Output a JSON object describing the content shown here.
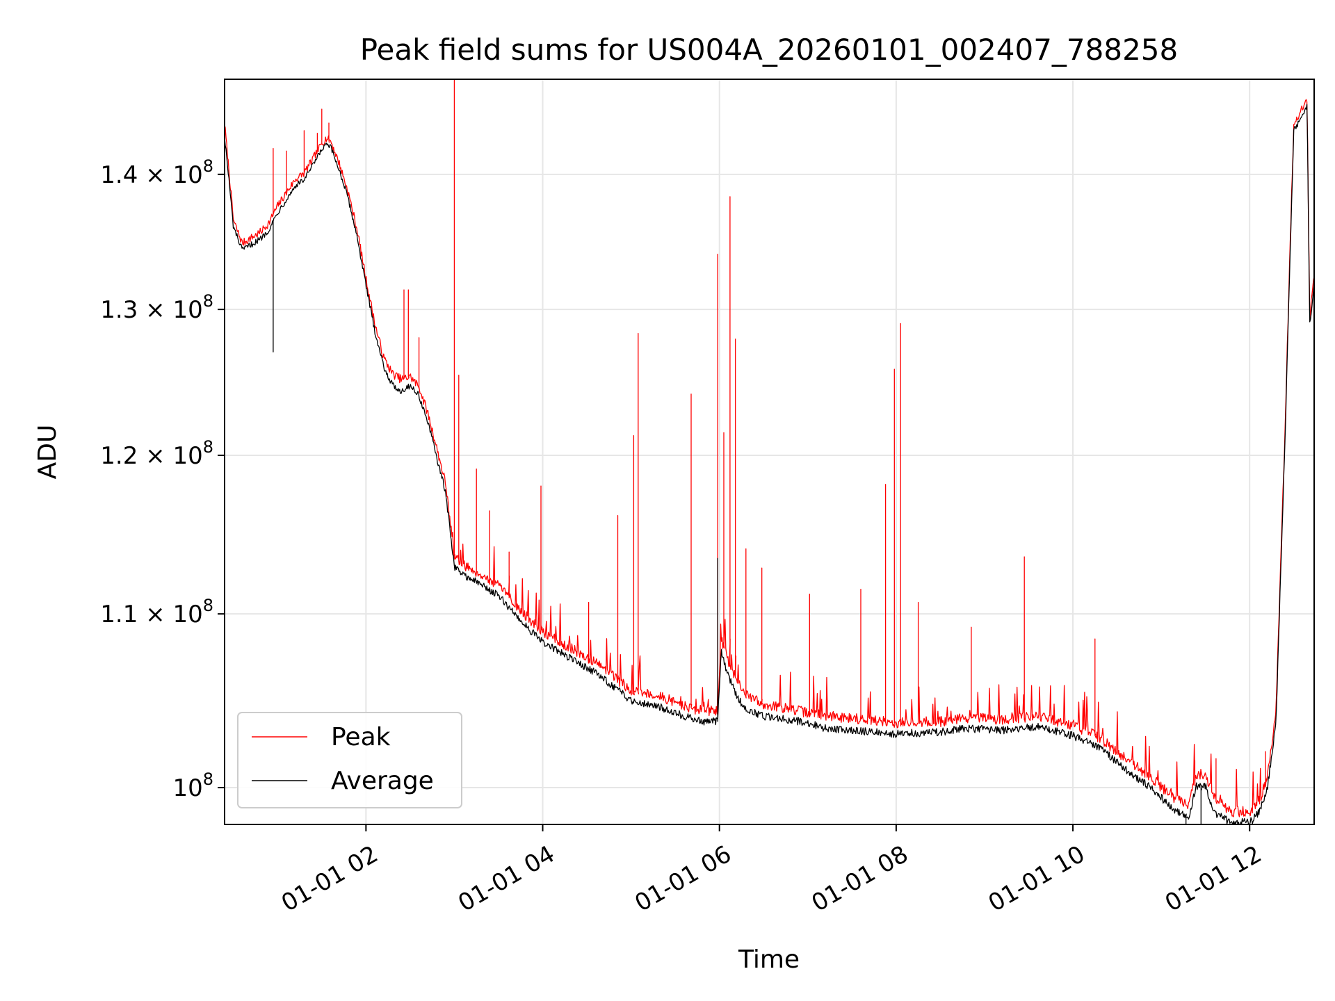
{
  "chart_data": {
    "type": "line",
    "title": "Peak field sums for US004A_20260101_002407_788258",
    "xlabel": "Time",
    "ylabel": "ADU",
    "x_unit": "hours since 2026-01-01 00:00",
    "xlim": [
      0.4,
      12.73
    ],
    "ylim": [
      98000000,
      147500000
    ],
    "y_scale": "log",
    "grid": true,
    "legend_location": "lower left",
    "x_ticks": [
      {
        "value": 2,
        "label": "01-01 02"
      },
      {
        "value": 4,
        "label": "01-01 04"
      },
      {
        "value": 6,
        "label": "01-01 06"
      },
      {
        "value": 8,
        "label": "01-01 08"
      },
      {
        "value": 10,
        "label": "01-01 10"
      },
      {
        "value": 12,
        "label": "01-01 12"
      }
    ],
    "y_ticks": [
      {
        "value": 100000000,
        "base": "10",
        "exponent": "8",
        "mantissa": ""
      },
      {
        "value": 110000000,
        "base": "1.1 × 10",
        "exponent": "8",
        "mantissa": "1.1"
      },
      {
        "value": 120000000,
        "base": "1.2 × 10",
        "exponent": "8",
        "mantissa": "1.2"
      },
      {
        "value": 130000000,
        "base": "1.3 × 10",
        "exponent": "8",
        "mantissa": "1.3"
      },
      {
        "value": 140000000,
        "base": "1.4 × 10",
        "exponent": "8",
        "mantissa": "1.4"
      }
    ],
    "series": [
      {
        "name": "Peak",
        "label": "Peak",
        "color": "#ff0000",
        "baseline_offset": 400000,
        "noise_amplitude": 300000,
        "spikes": [
          {
            "x": 0.95,
            "y": 142000000
          },
          {
            "x": 1.1,
            "y": 141800000
          },
          {
            "x": 1.3,
            "y": 143400000
          },
          {
            "x": 1.45,
            "y": 143200000
          },
          {
            "x": 1.5,
            "y": 145100000
          },
          {
            "x": 1.58,
            "y": 144000000
          },
          {
            "x": 2.43,
            "y": 131400000
          },
          {
            "x": 2.48,
            "y": 131400000
          },
          {
            "x": 2.6,
            "y": 128000000
          },
          {
            "x": 3.0,
            "y": 147500000
          },
          {
            "x": 3.05,
            "y": 125400000
          },
          {
            "x": 3.25,
            "y": 119100000
          },
          {
            "x": 3.4,
            "y": 116400000
          },
          {
            "x": 3.62,
            "y": 113800000
          },
          {
            "x": 3.98,
            "y": 118000000
          },
          {
            "x": 4.52,
            "y": 110700000
          },
          {
            "x": 4.85,
            "y": 116100000
          },
          {
            "x": 5.03,
            "y": 121300000
          },
          {
            "x": 5.08,
            "y": 128300000
          },
          {
            "x": 5.68,
            "y": 124100000
          },
          {
            "x": 5.98,
            "y": 134000000
          },
          {
            "x": 6.05,
            "y": 121500000
          },
          {
            "x": 6.12,
            "y": 138300000
          },
          {
            "x": 6.18,
            "y": 127900000
          },
          {
            "x": 6.3,
            "y": 114000000
          },
          {
            "x": 6.48,
            "y": 112800000
          },
          {
            "x": 7.02,
            "y": 111200000
          },
          {
            "x": 7.6,
            "y": 111500000
          },
          {
            "x": 7.88,
            "y": 118100000
          },
          {
            "x": 7.98,
            "y": 125800000
          },
          {
            "x": 8.05,
            "y": 129000000
          },
          {
            "x": 8.25,
            "y": 110700000
          },
          {
            "x": 8.85,
            "y": 109200000
          },
          {
            "x": 9.45,
            "y": 113500000
          },
          {
            "x": 10.25,
            "y": 108500000
          },
          {
            "x": 11.38,
            "y": 101500000
          },
          {
            "x": 11.62,
            "y": 101600000
          },
          {
            "x": 12.18,
            "y": 102000000
          }
        ],
        "points": [
          [
            0.4,
            144000000
          ],
          [
            0.5,
            136500000
          ],
          [
            0.6,
            134800000
          ],
          [
            0.7,
            135200000
          ],
          [
            0.8,
            135600000
          ],
          [
            0.9,
            136300000
          ],
          [
            1.0,
            137600000
          ],
          [
            1.1,
            138600000
          ],
          [
            1.2,
            139600000
          ],
          [
            1.3,
            140100000
          ],
          [
            1.4,
            141200000
          ],
          [
            1.5,
            142400000
          ],
          [
            1.55,
            142800000
          ],
          [
            1.6,
            142600000
          ],
          [
            1.7,
            140800000
          ],
          [
            1.8,
            138600000
          ],
          [
            1.9,
            135800000
          ],
          [
            2.0,
            132200000
          ],
          [
            2.1,
            129000000
          ],
          [
            2.2,
            126600000
          ],
          [
            2.3,
            125500000
          ],
          [
            2.4,
            125100000
          ],
          [
            2.5,
            125300000
          ],
          [
            2.6,
            124600000
          ],
          [
            2.7,
            122800000
          ],
          [
            2.8,
            120500000
          ],
          [
            2.9,
            118200000
          ],
          [
            3.0,
            113500000
          ],
          [
            3.1,
            113000000
          ],
          [
            3.3,
            112400000
          ],
          [
            3.5,
            111700000
          ],
          [
            3.7,
            110500000
          ],
          [
            3.9,
            109400000
          ],
          [
            4.0,
            108900000
          ],
          [
            4.2,
            108300000
          ],
          [
            4.4,
            107700000
          ],
          [
            4.6,
            107100000
          ],
          [
            4.8,
            106300000
          ],
          [
            5.0,
            105500000
          ],
          [
            5.2,
            105300000
          ],
          [
            5.4,
            105000000
          ],
          [
            5.6,
            104600000
          ],
          [
            5.8,
            104300000
          ],
          [
            5.98,
            104300000
          ],
          [
            6.02,
            108500000
          ],
          [
            6.1,
            107200000
          ],
          [
            6.2,
            106000000
          ],
          [
            6.3,
            105200000
          ],
          [
            6.5,
            104700000
          ],
          [
            6.8,
            104400000
          ],
          [
            7.0,
            104200000
          ],
          [
            7.2,
            104000000
          ],
          [
            7.5,
            103900000
          ],
          [
            8.0,
            103600000
          ],
          [
            8.5,
            103700000
          ],
          [
            8.8,
            103900000
          ],
          [
            9.2,
            103800000
          ],
          [
            9.6,
            104000000
          ],
          [
            10.0,
            103500000
          ],
          [
            10.3,
            102800000
          ],
          [
            10.6,
            101600000
          ],
          [
            10.9,
            100500000
          ],
          [
            11.1,
            99600000
          ],
          [
            11.3,
            99000000
          ],
          [
            11.4,
            100700000
          ],
          [
            11.5,
            100800000
          ],
          [
            11.6,
            99300000
          ],
          [
            11.8,
            98700000
          ],
          [
            12.0,
            98700000
          ],
          [
            12.1,
            99200000
          ],
          [
            12.2,
            100500000
          ],
          [
            12.3,
            104500000
          ],
          [
            12.4,
            121500000
          ],
          [
            12.5,
            144000000
          ],
          [
            12.6,
            145200000
          ],
          [
            12.65,
            145900000
          ],
          [
            12.68,
            129500000
          ],
          [
            12.73,
            132300000
          ]
        ]
      },
      {
        "name": "Average",
        "label": "Average",
        "color": "#000000",
        "baseline_offset": 0,
        "noise_amplitude": 220000,
        "spikes": [
          {
            "x": 0.95,
            "y": 127000000
          },
          {
            "x": 5.98,
            "y": 113400000
          },
          {
            "x": 11.28,
            "y": 97800000
          },
          {
            "x": 11.45,
            "y": 97600000
          }
        ],
        "points": [
          [
            0.4,
            143000000
          ],
          [
            0.5,
            136000000
          ],
          [
            0.6,
            134300000
          ],
          [
            0.7,
            134700000
          ],
          [
            0.8,
            135100000
          ],
          [
            0.9,
            135800000
          ],
          [
            1.0,
            137100000
          ],
          [
            1.1,
            138100000
          ],
          [
            1.2,
            139100000
          ],
          [
            1.3,
            139600000
          ],
          [
            1.4,
            140700000
          ],
          [
            1.5,
            141900000
          ],
          [
            1.55,
            142300000
          ],
          [
            1.6,
            142100000
          ],
          [
            1.7,
            140300000
          ],
          [
            1.8,
            138100000
          ],
          [
            1.9,
            135300000
          ],
          [
            2.0,
            131700000
          ],
          [
            2.1,
            128500000
          ],
          [
            2.2,
            126000000
          ],
          [
            2.3,
            124700000
          ],
          [
            2.4,
            124300000
          ],
          [
            2.5,
            124700000
          ],
          [
            2.6,
            124000000
          ],
          [
            2.7,
            122200000
          ],
          [
            2.8,
            119900000
          ],
          [
            2.9,
            117600000
          ],
          [
            3.0,
            112900000
          ],
          [
            3.1,
            112400000
          ],
          [
            3.3,
            111800000
          ],
          [
            3.5,
            111100000
          ],
          [
            3.7,
            109900000
          ],
          [
            3.9,
            108800000
          ],
          [
            4.0,
            108300000
          ],
          [
            4.2,
            107700000
          ],
          [
            4.4,
            107100000
          ],
          [
            4.6,
            106500000
          ],
          [
            4.8,
            105700000
          ],
          [
            5.0,
            104900000
          ],
          [
            5.2,
            104700000
          ],
          [
            5.4,
            104400000
          ],
          [
            5.6,
            104000000
          ],
          [
            5.8,
            103700000
          ],
          [
            5.98,
            103700000
          ],
          [
            6.02,
            107800000
          ],
          [
            6.1,
            106300000
          ],
          [
            6.2,
            105100000
          ],
          [
            6.3,
            104400000
          ],
          [
            6.5,
            104000000
          ],
          [
            6.8,
            103800000
          ],
          [
            7.0,
            103600000
          ],
          [
            7.2,
            103300000
          ],
          [
            7.5,
            103200000
          ],
          [
            8.0,
            103000000
          ],
          [
            8.5,
            103100000
          ],
          [
            8.8,
            103300000
          ],
          [
            9.2,
            103200000
          ],
          [
            9.6,
            103400000
          ],
          [
            10.0,
            102900000
          ],
          [
            10.3,
            102200000
          ],
          [
            10.6,
            101000000
          ],
          [
            10.9,
            99900000
          ],
          [
            11.1,
            99000000
          ],
          [
            11.3,
            98300000
          ],
          [
            11.4,
            100100000
          ],
          [
            11.5,
            100100000
          ],
          [
            11.6,
            98600000
          ],
          [
            11.8,
            98100000
          ],
          [
            12.0,
            98100000
          ],
          [
            12.1,
            98600000
          ],
          [
            12.2,
            99900000
          ],
          [
            12.3,
            103800000
          ],
          [
            12.4,
            120800000
          ],
          [
            12.5,
            143400000
          ],
          [
            12.6,
            144600000
          ],
          [
            12.65,
            145300000
          ],
          [
            12.68,
            128900000
          ],
          [
            12.73,
            131700000
          ]
        ]
      }
    ]
  }
}
